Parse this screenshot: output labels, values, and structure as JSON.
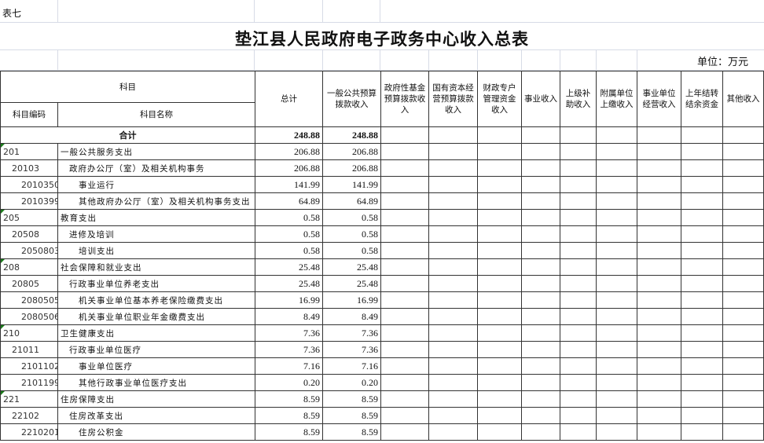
{
  "sheet_label": "表七",
  "title": "垫江县人民政府电子政务中心收入总表",
  "unit": "单位：万元",
  "headers": {
    "subject": "科目",
    "code": "科目编码",
    "name": "科目名称",
    "columns": [
      "总计",
      "一般公共预算拨款收入",
      "政府性基金预算拨款收入",
      "国有资本经营预算拨款收入",
      "财政专户管理资金收入",
      "事业收入",
      "上级补助收入",
      "附属单位上缴收入",
      "事业单位经营收入",
      "上年结转结余资金",
      "其他收入"
    ]
  },
  "total": {
    "label": "合计",
    "total": "248.88",
    "general": "248.88"
  },
  "rows": [
    {
      "code": "201",
      "name": "一般公共服务支出",
      "level": 0,
      "total": "206.88",
      "general": "206.88"
    },
    {
      "code": "20103",
      "name": "政府办公厅（室）及相关机构事务",
      "level": 1,
      "total": "206.88",
      "general": "206.88"
    },
    {
      "code": "2010350",
      "name": "事业运行",
      "level": 2,
      "total": "141.99",
      "general": "141.99"
    },
    {
      "code": "2010399",
      "name": "其他政府办公厅（室）及相关机构事务支出",
      "level": 2,
      "total": "64.89",
      "general": "64.89"
    },
    {
      "code": "205",
      "name": "教育支出",
      "level": 0,
      "total": "0.58",
      "general": "0.58"
    },
    {
      "code": "20508",
      "name": "进修及培训",
      "level": 1,
      "total": "0.58",
      "general": "0.58"
    },
    {
      "code": "2050803",
      "name": "培训支出",
      "level": 2,
      "total": "0.58",
      "general": "0.58"
    },
    {
      "code": "208",
      "name": "社会保障和就业支出",
      "level": 0,
      "total": "25.48",
      "general": "25.48"
    },
    {
      "code": "20805",
      "name": "行政事业单位养老支出",
      "level": 1,
      "total": "25.48",
      "general": "25.48"
    },
    {
      "code": "2080505",
      "name": "机关事业单位基本养老保险缴费支出",
      "level": 2,
      "total": "16.99",
      "general": "16.99"
    },
    {
      "code": "2080506",
      "name": "机关事业单位职业年金缴费支出",
      "level": 2,
      "total": "8.49",
      "general": "8.49"
    },
    {
      "code": "210",
      "name": "卫生健康支出",
      "level": 0,
      "total": "7.36",
      "general": "7.36"
    },
    {
      "code": "21011",
      "name": "行政事业单位医疗",
      "level": 1,
      "total": "7.36",
      "general": "7.36"
    },
    {
      "code": "2101102",
      "name": "事业单位医疗",
      "level": 2,
      "total": "7.16",
      "general": "7.16"
    },
    {
      "code": "2101199",
      "name": "其他行政事业单位医疗支出",
      "level": 2,
      "total": "0.20",
      "general": "0.20"
    },
    {
      "code": "221",
      "name": "住房保障支出",
      "level": 0,
      "total": "8.59",
      "general": "8.59"
    },
    {
      "code": "22102",
      "name": "住房改革支出",
      "level": 1,
      "total": "8.59",
      "general": "8.59"
    },
    {
      "code": "2210201",
      "name": "住房公积金",
      "level": 2,
      "total": "8.59",
      "general": "8.59"
    }
  ]
}
